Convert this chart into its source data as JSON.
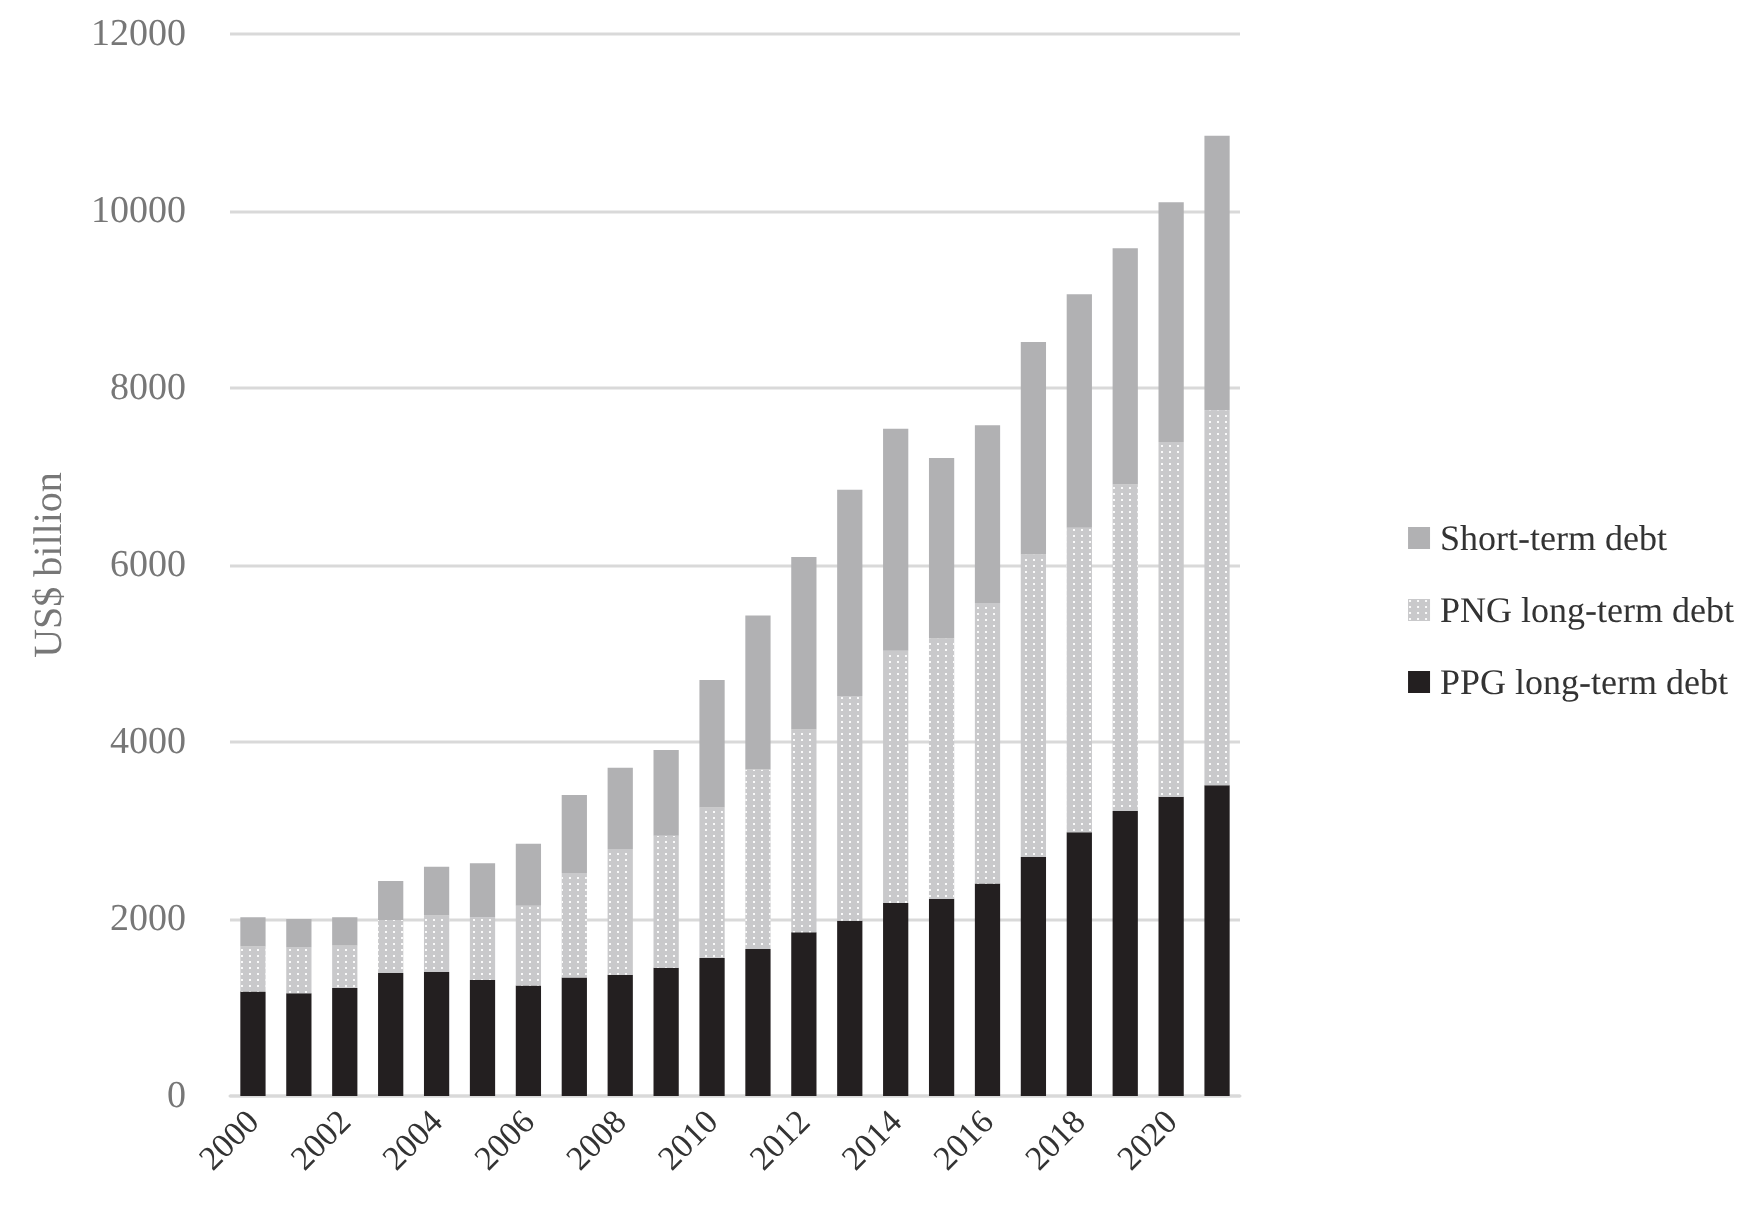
{
  "chart_data": {
    "type": "bar",
    "stacked": true,
    "ylabel": "US$ billion",
    "categories": [
      "2000",
      null,
      "2002",
      null,
      "2004",
      null,
      "2006",
      null,
      "2008",
      null,
      "2010",
      null,
      "2012",
      null,
      "2014",
      null,
      "2016",
      null,
      "2018",
      null,
      "2020",
      null
    ],
    "series": [
      {
        "name": "PPG long-term debt",
        "color": "#231f20",
        "values": [
          1180,
          1160,
          1220,
          1390,
          1400,
          1310,
          1250,
          1340,
          1370,
          1450,
          1560,
          1660,
          1850,
          1980,
          2180,
          2230,
          2400,
          2700,
          2980,
          3220,
          3380,
          3510
        ]
      },
      {
        "name": "PNG long-term debt",
        "color": "#c9c9cb",
        "values": [
          510,
          520,
          480,
          600,
          640,
          710,
          900,
          1180,
          1420,
          1490,
          1700,
          2030,
          2290,
          2540,
          2850,
          2940,
          3170,
          3420,
          3440,
          3690,
          4010,
          4240
        ]
      },
      {
        "name": "Short-term debt",
        "color": "#b1b1b3",
        "values": [
          330,
          320,
          320,
          440,
          550,
          610,
          700,
          880,
          920,
          970,
          1440,
          1740,
          1950,
          2330,
          2510,
          2040,
          2010,
          2400,
          2640,
          2670,
          2710,
          3100
        ]
      }
    ],
    "ylim": [
      0,
      12000
    ],
    "yticks": [
      0,
      2000,
      4000,
      6000,
      8000,
      10000,
      12000
    ],
    "grid": "y",
    "legend": "right"
  }
}
